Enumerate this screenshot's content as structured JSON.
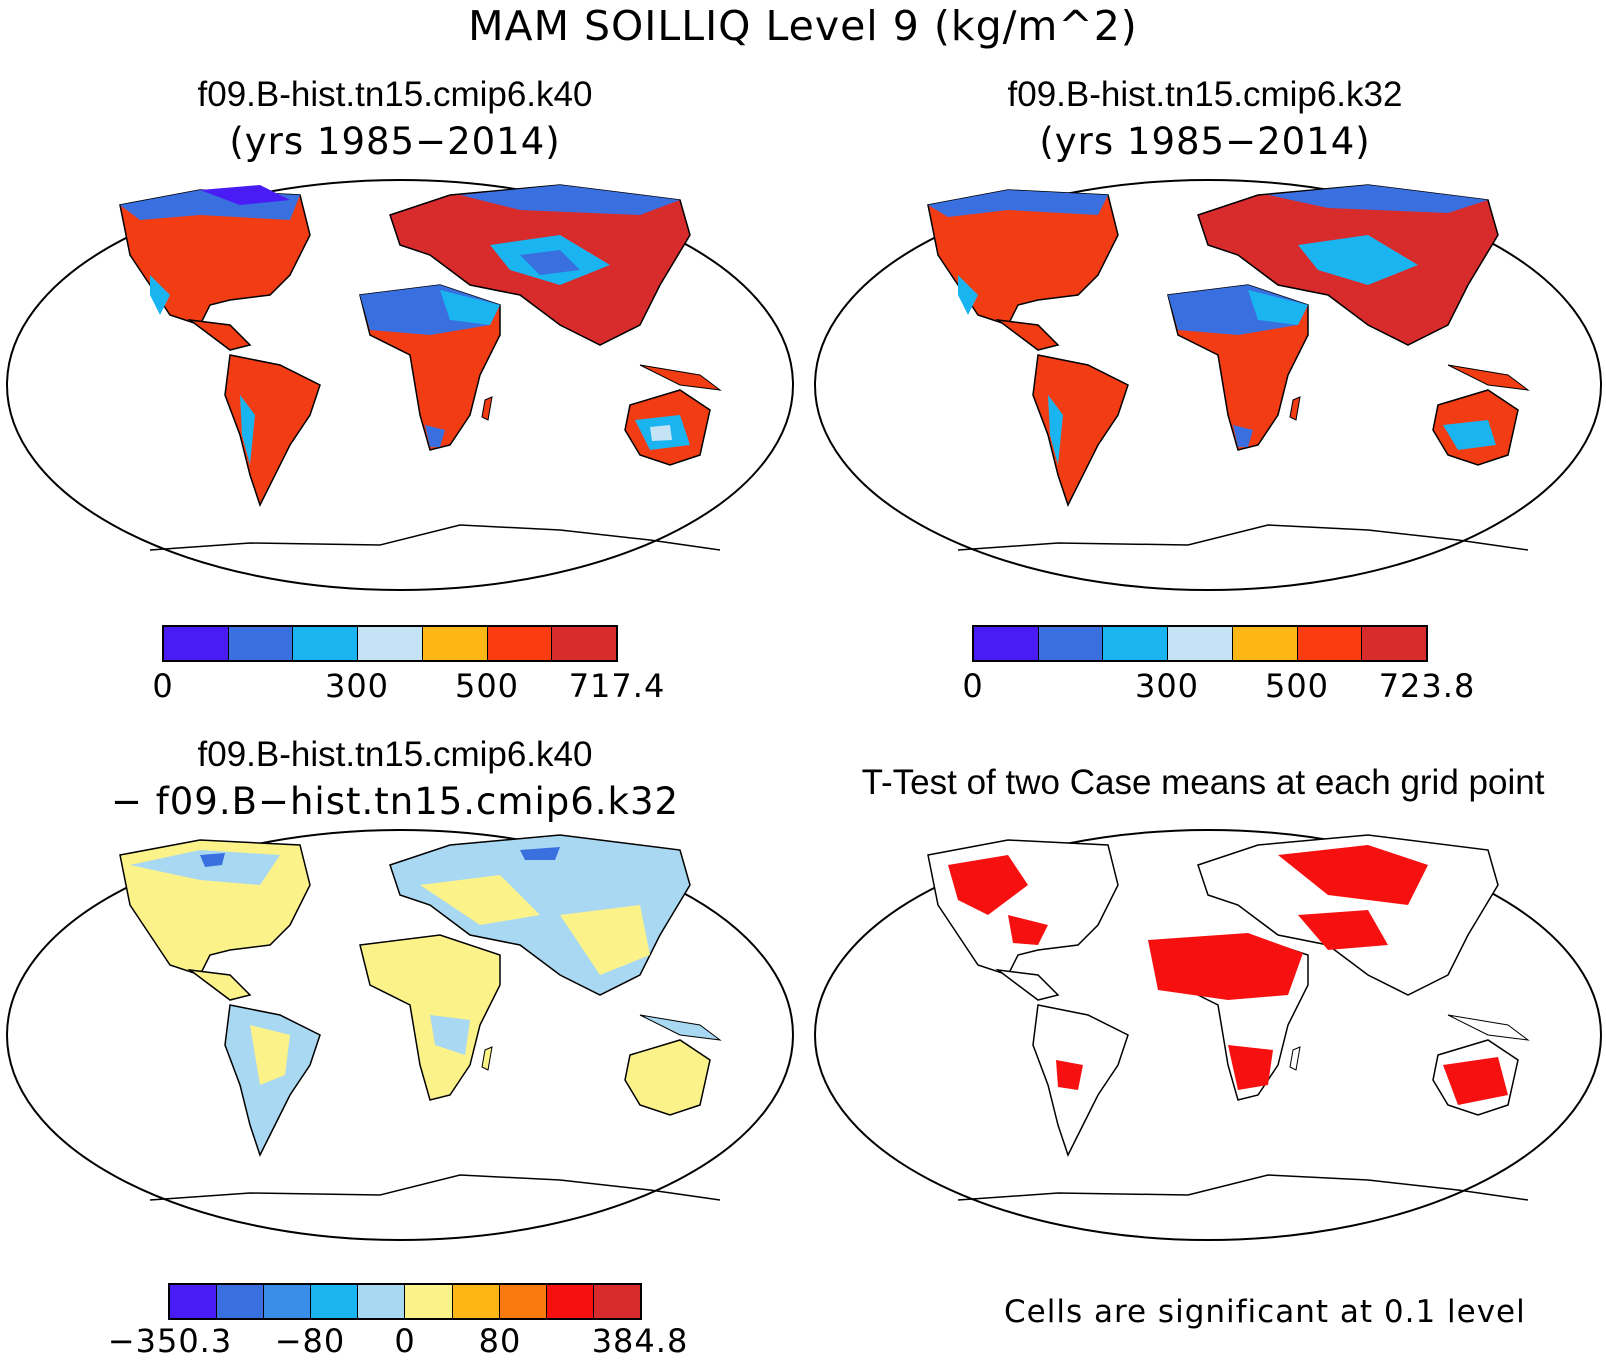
{
  "main_title": "MAM SOILLIQ Level 9 (kg/m^2)",
  "panels": {
    "top_left": {
      "title": "f09.B-hist.tn15.cmip6.k40",
      "subtitle": "(yrs 1985−2014)",
      "colorbar": {
        "colors": [
          "#4a1cf5",
          "#3a6fe0",
          "#1ab4f0",
          "#c4e4f6",
          "#fcb616",
          "#fb3c10",
          "#d82b2b"
        ],
        "labels": [
          "0",
          "300",
          "500",
          "717.4"
        ]
      }
    },
    "top_right": {
      "title": "f09.B-hist.tn15.cmip6.k32",
      "subtitle": "(yrs 1985−2014)",
      "colorbar": {
        "colors": [
          "#4a1cf5",
          "#3a6fe0",
          "#1ab4f0",
          "#c4e4f6",
          "#fcb616",
          "#fb3c10",
          "#d82b2b"
        ],
        "labels": [
          "0",
          "300",
          "500",
          "723.8"
        ]
      }
    },
    "bottom_left": {
      "title": "f09.B-hist.tn15.cmip6.k40",
      "subtitle": "− f09.B−hist.tn15.cmip6.k32",
      "colorbar": {
        "colors": [
          "#4a1cf5",
          "#3a6fe0",
          "#3b8ee8",
          "#1ab4f0",
          "#a9d8f2",
          "#fbf28a",
          "#fcb616",
          "#fb7a10",
          "#f71010",
          "#d82b2b"
        ],
        "labels": [
          "−350.3",
          "−80",
          "0",
          "80",
          "384.8"
        ]
      }
    },
    "bottom_right": {
      "title": "T-Test of two Case means at each grid point",
      "note": "Cells are significant at 0.1 level"
    }
  },
  "map_colors": {
    "land_high": "#f23d14",
    "land_dry": "#1ab4f0",
    "land_pos_diff": "#fbf28a",
    "land_neg_diff": "#a9d8f2",
    "significant": "#f71010"
  }
}
